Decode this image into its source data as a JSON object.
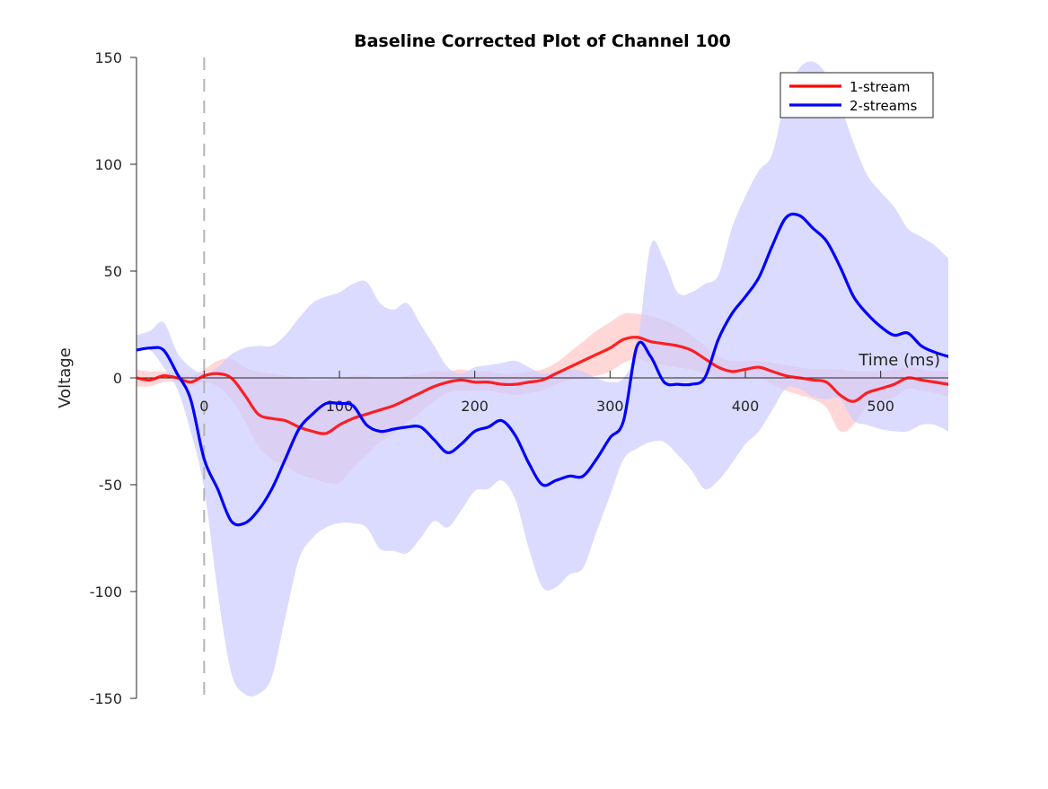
{
  "chart_data": {
    "type": "line",
    "title": "Baseline Corrected Plot of Channel 100",
    "xlabel": "Time (ms)",
    "ylabel": "Voltage",
    "xlim": [
      -50,
      550
    ],
    "ylim": [
      -150,
      150
    ],
    "yticks": [
      150,
      100,
      50,
      0,
      -50,
      -100,
      -150
    ],
    "ytick_labels": [
      "150",
      "100",
      "50",
      "0",
      "-50",
      "-100",
      "-150"
    ],
    "xticks": [
      0,
      100,
      200,
      300,
      400,
      500
    ],
    "xtick_labels": [
      "0",
      "100",
      "200",
      "300",
      "400",
      "500"
    ],
    "grid": false,
    "legend_position": "top-right",
    "event_marker_x": 0,
    "series": [
      {
        "name": "1-stream",
        "color": "#ff0000",
        "band_color": "#ffc9c9",
        "x": [
          -50,
          -40,
          -30,
          -20,
          -10,
          0,
          10,
          20,
          30,
          40,
          50,
          60,
          70,
          80,
          90,
          100,
          110,
          120,
          130,
          140,
          150,
          160,
          170,
          180,
          190,
          200,
          210,
          220,
          230,
          240,
          250,
          260,
          270,
          280,
          290,
          300,
          310,
          320,
          330,
          340,
          350,
          360,
          370,
          380,
          390,
          400,
          410,
          420,
          430,
          440,
          450,
          460,
          470,
          480,
          490,
          500,
          510,
          520,
          530,
          540,
          550
        ],
        "values": [
          0,
          -1,
          1,
          0,
          -2,
          1,
          2,
          0,
          -8,
          -17,
          -19,
          -20,
          -23,
          -25,
          -26,
          -22,
          -19,
          -17,
          -15,
          -13,
          -10,
          -7,
          -4,
          -2,
          -1,
          -2,
          -2,
          -3,
          -3,
          -2,
          -1,
          2,
          5,
          8,
          11,
          14,
          18,
          19,
          17,
          16,
          15,
          13,
          9,
          5,
          3,
          4,
          5,
          3,
          1,
          0,
          -1,
          -2,
          -8,
          -11,
          -7,
          -5,
          -3,
          0,
          -1,
          -2,
          -3
        ],
        "band_upper": [
          4,
          3,
          3,
          2,
          1,
          4,
          8,
          9,
          5,
          3,
          2,
          1,
          0,
          -1,
          -1,
          0,
          1,
          1,
          0,
          0,
          1,
          2,
          3,
          3,
          4,
          3,
          3,
          2,
          2,
          3,
          4,
          7,
          12,
          17,
          22,
          26,
          30,
          30,
          29,
          27,
          24,
          20,
          15,
          10,
          8,
          8,
          8,
          7,
          6,
          5,
          4,
          4,
          4,
          3,
          3,
          3,
          4,
          5,
          4,
          3,
          3
        ],
        "band_lower": [
          -4,
          -4,
          -2,
          -2,
          -4,
          -2,
          -4,
          -10,
          -20,
          -32,
          -38,
          -41,
          -45,
          -47,
          -49,
          -49,
          -42,
          -36,
          -30,
          -26,
          -21,
          -16,
          -11,
          -7,
          -6,
          -6,
          -6,
          -7,
          -8,
          -7,
          -6,
          -3,
          -1,
          0,
          1,
          3,
          7,
          9,
          7,
          6,
          5,
          4,
          2,
          0,
          -1,
          -1,
          0,
          -3,
          -6,
          -8,
          -10,
          -14,
          -25,
          -22,
          -13,
          -11,
          -9,
          -5,
          -6,
          -7,
          -9
        ]
      },
      {
        "name": "2-streams",
        "color": "#0000ff",
        "band_color": "#ccccff",
        "x": [
          -50,
          -40,
          -30,
          -20,
          -10,
          0,
          10,
          20,
          30,
          40,
          50,
          60,
          70,
          80,
          90,
          100,
          110,
          120,
          130,
          140,
          150,
          160,
          170,
          180,
          190,
          200,
          210,
          220,
          230,
          240,
          250,
          260,
          270,
          280,
          290,
          300,
          310,
          320,
          330,
          340,
          350,
          360,
          370,
          380,
          390,
          400,
          410,
          420,
          430,
          440,
          450,
          460,
          470,
          480,
          490,
          500,
          510,
          520,
          530,
          540,
          550
        ],
        "values": [
          13,
          14,
          13,
          2,
          -10,
          -38,
          -52,
          -67,
          -68,
          -62,
          -52,
          -38,
          -24,
          -17,
          -12,
          -12,
          -13,
          -22,
          -25,
          -24,
          -23,
          -23,
          -29,
          -35,
          -31,
          -25,
          -23,
          -20,
          -27,
          -40,
          -50,
          -48,
          -46,
          -46,
          -38,
          -28,
          -20,
          15,
          10,
          -2,
          -3,
          -3,
          0,
          18,
          30,
          38,
          47,
          62,
          75,
          76,
          70,
          64,
          52,
          38,
          30,
          24,
          20,
          21,
          15,
          12,
          10
        ],
        "band_upper": [
          20,
          22,
          26,
          12,
          5,
          2,
          5,
          11,
          14,
          15,
          15,
          20,
          28,
          35,
          38,
          40,
          44,
          45,
          35,
          32,
          35,
          25,
          15,
          5,
          2,
          5,
          6,
          7,
          8,
          5,
          2,
          3,
          4,
          3,
          0,
          -2,
          0,
          15,
          62,
          55,
          40,
          40,
          44,
          48,
          70,
          85,
          97,
          105,
          132,
          145,
          148,
          142,
          128,
          110,
          95,
          87,
          80,
          70,
          66,
          62,
          56
        ],
        "band_lower": [
          14,
          13,
          5,
          -5,
          -25,
          -52,
          -100,
          -138,
          -148,
          -148,
          -140,
          -112,
          -85,
          -75,
          -70,
          -68,
          -68,
          -70,
          -80,
          -81,
          -82,
          -75,
          -67,
          -70,
          -62,
          -53,
          -52,
          -48,
          -57,
          -80,
          -98,
          -98,
          -92,
          -89,
          -72,
          -55,
          -38,
          -33,
          -30,
          -30,
          -36,
          -43,
          -52,
          -48,
          -40,
          -31,
          -25,
          -15,
          -5,
          -5,
          -9,
          -10,
          -10,
          -20,
          -22,
          -24,
          -25,
          -25,
          -22,
          -22,
          -25
        ]
      }
    ]
  }
}
